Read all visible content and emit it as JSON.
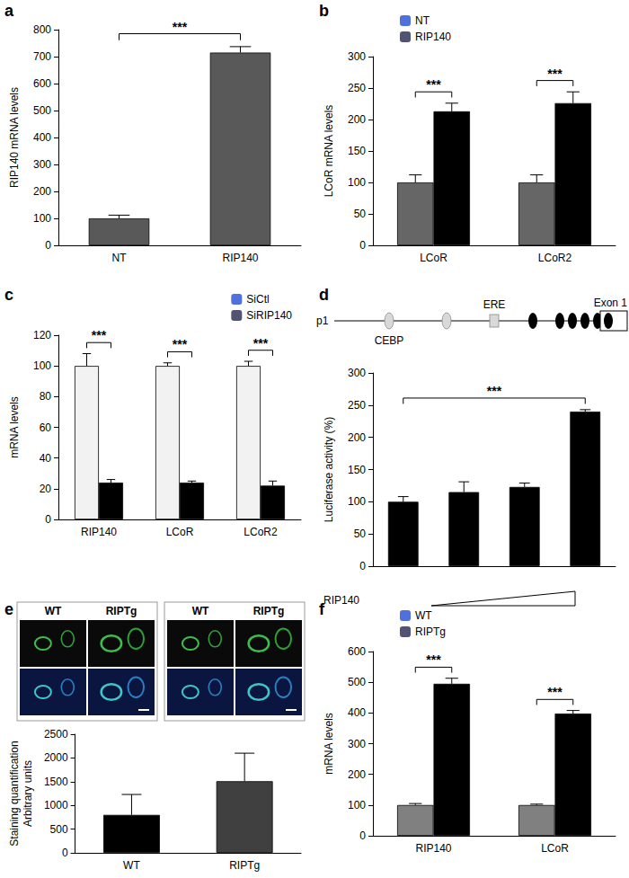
{
  "chart_data": [
    {
      "panel": "a",
      "type": "bar",
      "ylabel": "RIP140 mRNA levels",
      "categories": [
        "NT",
        "RIP140"
      ],
      "values": [
        100,
        715
      ],
      "errors": [
        12,
        22
      ],
      "color": "#595959",
      "ylim": [
        0,
        800
      ],
      "yticks": [
        0,
        100,
        200,
        300,
        400,
        500,
        600,
        700,
        800
      ],
      "grid": false,
      "significance": [
        {
          "text": "***",
          "from": 0,
          "to": 1
        }
      ]
    },
    {
      "panel": "b",
      "type": "bar",
      "ylabel": "LCoR mRNA levels",
      "categories": [
        "LCoR",
        "LCoR2"
      ],
      "series": [
        {
          "name": "NT",
          "color": "#666666",
          "values": [
            100,
            100
          ],
          "errors": [
            12,
            12
          ]
        },
        {
          "name": "RIP140",
          "color": "#000000",
          "values": [
            213,
            226
          ],
          "errors": [
            13,
            18
          ]
        }
      ],
      "ylim": [
        0,
        300
      ],
      "yticks": [
        0,
        50,
        100,
        150,
        200,
        250,
        300
      ],
      "legend": "upper left",
      "grid": false,
      "significance": [
        {
          "text": "***",
          "category": 0
        },
        {
          "text": "***",
          "category": 1
        }
      ]
    },
    {
      "panel": "c",
      "type": "bar",
      "ylabel": "mRNA levels",
      "categories": [
        "RIP140",
        "LCoR",
        "LCoR2"
      ],
      "series": [
        {
          "name": "SiCtl",
          "color": "#f2f2f2",
          "values": [
            100,
            100,
            100
          ],
          "errors": [
            8,
            2,
            3
          ]
        },
        {
          "name": "SiRIP140",
          "color": "#000000",
          "values": [
            24,
            24,
            22
          ],
          "errors": [
            2,
            1,
            3
          ]
        }
      ],
      "ylim": [
        0,
        120
      ],
      "yticks": [
        0,
        20,
        40,
        60,
        80,
        100,
        120
      ],
      "legend": "upper right",
      "grid": false,
      "significance": [
        {
          "text": "***",
          "category": 0
        },
        {
          "text": "***",
          "category": 1
        },
        {
          "text": "***",
          "category": 2
        }
      ]
    },
    {
      "panel": "d",
      "type": "bar",
      "ylabel": "Luciferase activity (%)",
      "xlabel": "RIP140",
      "categories": [
        null,
        null,
        null,
        null
      ],
      "values": [
        100,
        115,
        123,
        240
      ],
      "errors": [
        8,
        16,
        6,
        3
      ],
      "color": "#000000",
      "ylim": [
        0,
        300
      ],
      "yticks": [
        0,
        50,
        100,
        150,
        200,
        250,
        300
      ],
      "grid": false,
      "significance": [
        {
          "text": "***",
          "from": 0,
          "to": 3
        }
      ]
    },
    {
      "panel": "e",
      "type": "bar",
      "ylabel": "Staining quantification\nArbitrary units",
      "categories": [
        "WT",
        "RIPTg"
      ],
      "values": [
        800,
        1510
      ],
      "errors": [
        430,
        590
      ],
      "colors": [
        "#000000",
        "#404040"
      ],
      "ylim": [
        0,
        2500
      ],
      "yticks": [
        0,
        500,
        1000,
        1500,
        2000,
        2500
      ],
      "grid": false
    },
    {
      "panel": "f",
      "type": "bar",
      "ylabel": "mRNA levels",
      "categories": [
        "RIP140",
        "LCoR"
      ],
      "series": [
        {
          "name": "WT",
          "color": "#808080",
          "values": [
            100,
            100
          ],
          "errors": [
            5,
            3
          ]
        },
        {
          "name": "RIPTg",
          "color": "#000000",
          "values": [
            495,
            398
          ],
          "errors": [
            18,
            10
          ]
        }
      ],
      "ylim": [
        0,
        600
      ],
      "yticks": [
        0,
        100,
        200,
        300,
        400,
        500,
        600
      ],
      "legend": "upper left",
      "grid": false,
      "significance": [
        {
          "text": "***",
          "category": 0
        },
        {
          "text": "***",
          "category": 1
        }
      ]
    }
  ],
  "promoter": {
    "name": "p1",
    "elements": [
      {
        "kind": "site",
        "label": "CEBP"
      },
      {
        "kind": "site"
      },
      {
        "kind": "box",
        "label": "ERE"
      },
      {
        "kind": "black"
      },
      {
        "kind": "black"
      },
      {
        "kind": "black"
      },
      {
        "kind": "black"
      },
      {
        "kind": "black"
      },
      {
        "kind": "exon",
        "label": "Exon 1"
      }
    ]
  },
  "micrographs": {
    "columns": [
      "WT",
      "RIPTg",
      "WT",
      "RIPTg"
    ]
  }
}
